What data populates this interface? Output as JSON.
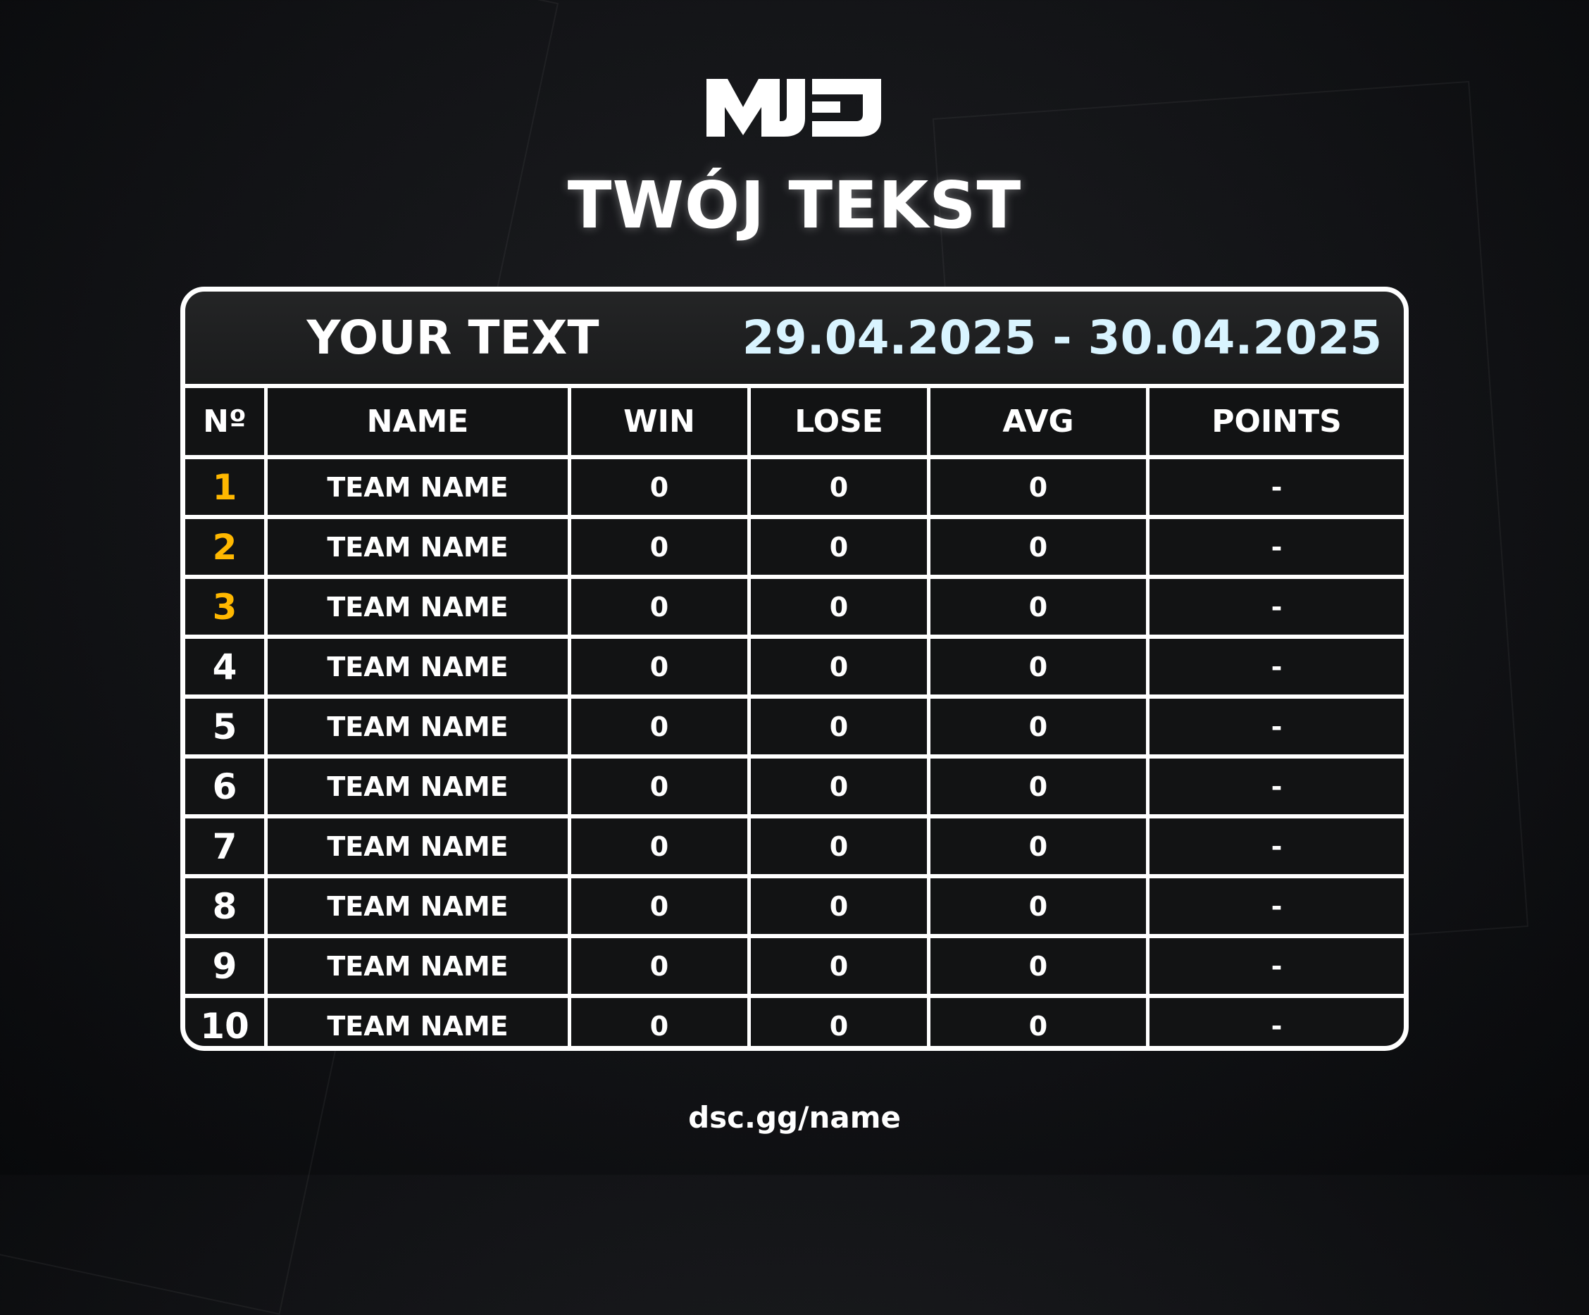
{
  "logo": {
    "text": "MJEU"
  },
  "title": "TWÓJ TEKST",
  "table": {
    "header_text": "YOUR TEXT",
    "dates": "29.04.2025 - 30.04.2025",
    "columns": [
      "Nº",
      "NAME",
      "WIN",
      "LOSE",
      "AVG",
      "POINTS"
    ],
    "rows": [
      {
        "rank": "1",
        "name": "TEAM NAME",
        "win": "0",
        "lose": "0",
        "avg": "0",
        "points": "-"
      },
      {
        "rank": "2",
        "name": "TEAM NAME",
        "win": "0",
        "lose": "0",
        "avg": "0",
        "points": "-"
      },
      {
        "rank": "3",
        "name": "TEAM NAME",
        "win": "0",
        "lose": "0",
        "avg": "0",
        "points": "-"
      },
      {
        "rank": "4",
        "name": "TEAM NAME",
        "win": "0",
        "lose": "0",
        "avg": "0",
        "points": "-"
      },
      {
        "rank": "5",
        "name": "TEAM NAME",
        "win": "0",
        "lose": "0",
        "avg": "0",
        "points": "-"
      },
      {
        "rank": "6",
        "name": "TEAM NAME",
        "win": "0",
        "lose": "0",
        "avg": "0",
        "points": "-"
      },
      {
        "rank": "7",
        "name": "TEAM NAME",
        "win": "0",
        "lose": "0",
        "avg": "0",
        "points": "-"
      },
      {
        "rank": "8",
        "name": "TEAM NAME",
        "win": "0",
        "lose": "0",
        "avg": "0",
        "points": "-"
      },
      {
        "rank": "9",
        "name": "TEAM NAME",
        "win": "0",
        "lose": "0",
        "avg": "0",
        "points": "-"
      },
      {
        "rank": "10",
        "name": "TEAM NAME",
        "win": "0",
        "lose": "0",
        "avg": "0",
        "points": "-"
      }
    ]
  },
  "footer": "dsc.gg/name",
  "colors": {
    "top_rank": "#ffb800",
    "dates": "#d9f4ff",
    "border": "#ffffff",
    "cell": "#121314"
  }
}
